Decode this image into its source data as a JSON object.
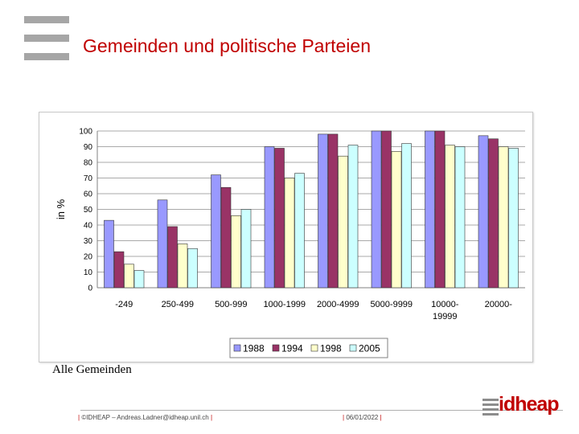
{
  "slide": {
    "title": "Gemeinden und politische Parteien",
    "caption": "Alle Gemeinden",
    "footer_left": "©IDHEAP – Andreas.Ladner@idheap.unil.ch",
    "footer_date": "06/01/2022",
    "brand": "idheap"
  },
  "chart_data": {
    "type": "bar",
    "title": "",
    "xlabel": "",
    "ylabel": "in %",
    "ylim": [
      0,
      100
    ],
    "yticks": [
      0,
      10,
      20,
      30,
      40,
      50,
      60,
      70,
      80,
      90,
      100
    ],
    "grid": true,
    "legend_position": "bottom",
    "categories": [
      "-249",
      "250-499",
      "500-999",
      "1000-1999",
      "2000-4999",
      "5000-9999",
      "10000-\n19999",
      "20000-"
    ],
    "series": [
      {
        "name": "1988",
        "color": "#9999ff",
        "values": [
          43,
          56,
          72,
          90,
          98,
          100,
          100,
          97
        ]
      },
      {
        "name": "1994",
        "color": "#993366",
        "values": [
          23,
          39,
          64,
          89,
          98,
          100,
          100,
          95
        ]
      },
      {
        "name": "1998",
        "color": "#ffffcc",
        "values": [
          15,
          28,
          46,
          70,
          84,
          87,
          91,
          90
        ]
      },
      {
        "name": "2005",
        "color": "#ccffff",
        "values": [
          11,
          25,
          50,
          73,
          91,
          92,
          90,
          89
        ]
      }
    ]
  }
}
